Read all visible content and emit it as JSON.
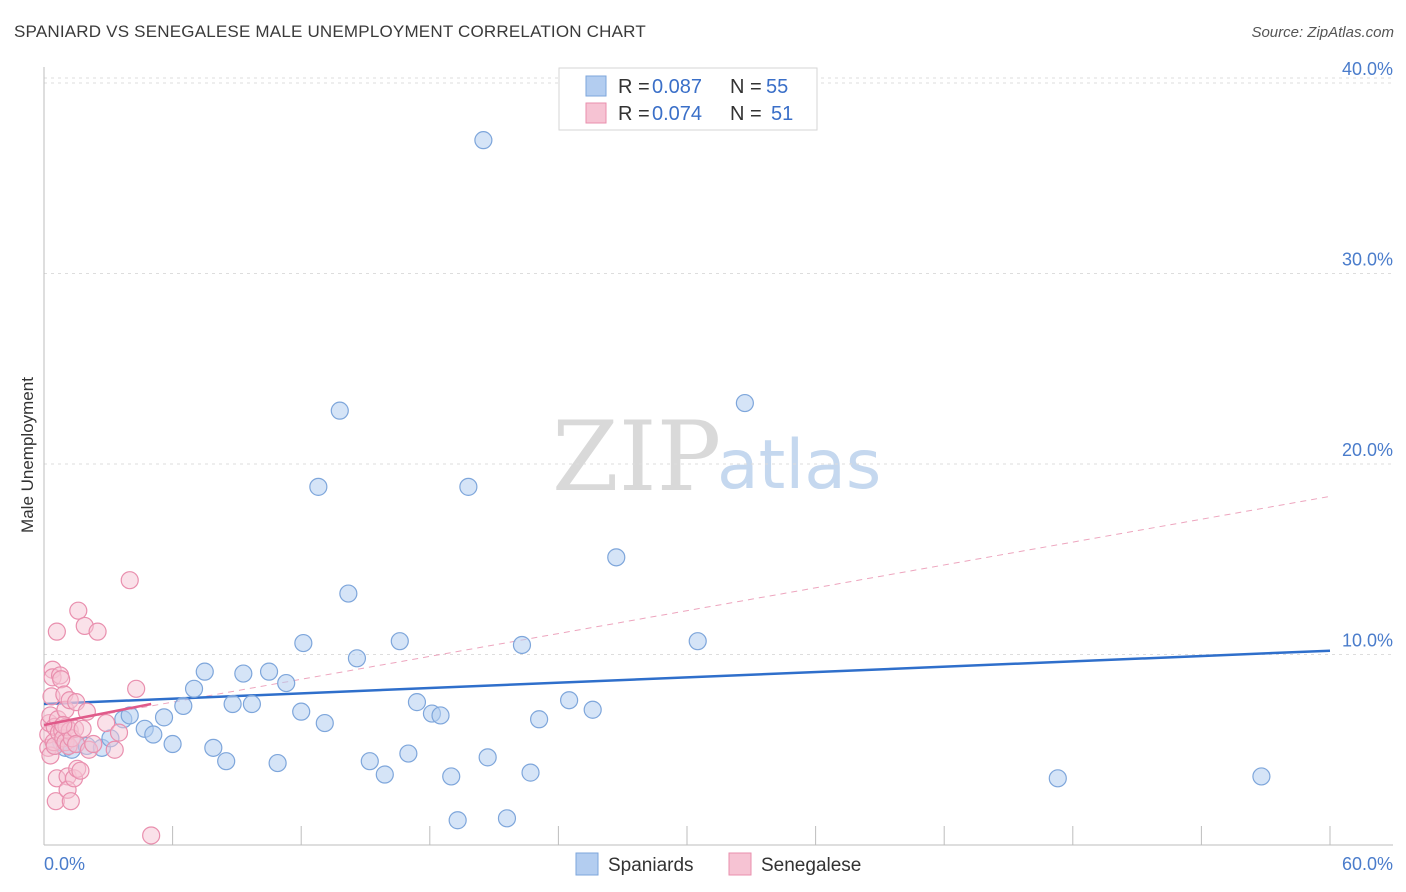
{
  "header": {
    "title": "SPANIARD VS SENEGALESE MALE UNEMPLOYMENT CORRELATION CHART",
    "source": "Source: ZipAtlas.com"
  },
  "chart_data": {
    "type": "scatter",
    "title": "SPANIARD VS SENEGALESE MALE UNEMPLOYMENT CORRELATION CHART",
    "ylabel": "Male Unemployment",
    "xlabel": "",
    "xlim": [
      0,
      60
    ],
    "ylim": [
      0,
      42
    ],
    "x_tick_labels": [
      "0.0%",
      "60.0%"
    ],
    "y_ticks": [
      10,
      20,
      30,
      40
    ],
    "y_tick_labels": [
      "10.0%",
      "20.0%",
      "30.0%",
      "40.0%"
    ],
    "grid": true,
    "colors": {
      "spaniards_fill": "#b3cdf0",
      "spaniards_stroke": "#7ea6db",
      "spaniards_line": "#2f6fcb",
      "senegalese_fill": "#f6c3d3",
      "senegalese_stroke": "#e98fae",
      "senegalese_line": "#e05a8a"
    },
    "legend": {
      "r_label": "R =",
      "n_label": "N =",
      "entries": [
        {
          "r": "0.087",
          "n": "55"
        },
        {
          "r": "0.074",
          "n": "51"
        }
      ]
    },
    "series": [
      {
        "name": "Spaniards",
        "r": 0.087,
        "n": 55,
        "trend": {
          "x": [
            0,
            60
          ],
          "y": [
            7.4,
            10.2
          ]
        },
        "points": [
          [
            0.5,
            5.2
          ],
          [
            0.8,
            5.4
          ],
          [
            1.0,
            5.1
          ],
          [
            1.3,
            5.0
          ],
          [
            1.5,
            5.3
          ],
          [
            2.0,
            5.2
          ],
          [
            2.7,
            5.1
          ],
          [
            3.1,
            5.6
          ],
          [
            3.7,
            6.6
          ],
          [
            4.0,
            6.8
          ],
          [
            4.7,
            6.1
          ],
          [
            5.1,
            5.8
          ],
          [
            5.6,
            6.7
          ],
          [
            6.0,
            5.3
          ],
          [
            6.5,
            7.3
          ],
          [
            7.0,
            8.2
          ],
          [
            7.5,
            9.1
          ],
          [
            7.9,
            5.1
          ],
          [
            8.5,
            4.4
          ],
          [
            8.8,
            7.4
          ],
          [
            9.3,
            9.0
          ],
          [
            9.7,
            7.4
          ],
          [
            10.5,
            9.1
          ],
          [
            10.9,
            4.3
          ],
          [
            11.3,
            8.5
          ],
          [
            12.0,
            7.0
          ],
          [
            12.1,
            10.6
          ],
          [
            12.8,
            18.8
          ],
          [
            13.1,
            6.4
          ],
          [
            13.8,
            22.8
          ],
          [
            14.2,
            13.2
          ],
          [
            14.6,
            9.8
          ],
          [
            15.2,
            4.4
          ],
          [
            15.9,
            3.7
          ],
          [
            16.6,
            10.7
          ],
          [
            17.0,
            4.8
          ],
          [
            17.4,
            7.5
          ],
          [
            18.1,
            6.9
          ],
          [
            18.5,
            6.8
          ],
          [
            19.0,
            3.6
          ],
          [
            19.3,
            1.3
          ],
          [
            19.8,
            18.8
          ],
          [
            20.5,
            37.0
          ],
          [
            20.7,
            4.6
          ],
          [
            21.6,
            1.4
          ],
          [
            22.3,
            10.5
          ],
          [
            22.7,
            3.8
          ],
          [
            23.1,
            6.6
          ],
          [
            24.5,
            7.6
          ],
          [
            25.6,
            7.1
          ],
          [
            26.7,
            15.1
          ],
          [
            30.5,
            10.7
          ],
          [
            32.7,
            23.2
          ],
          [
            47.3,
            3.5
          ],
          [
            56.8,
            3.6
          ]
        ]
      },
      {
        "name": "Senegalese",
        "r": 0.074,
        "n": 51,
        "trend": {
          "x": [
            0,
            5.0
          ],
          "y": [
            6.3,
            7.4
          ]
        },
        "trend_extended": {
          "x": [
            0,
            60
          ],
          "y": [
            6.3,
            18.3
          ]
        },
        "points": [
          [
            0.2,
            5.1
          ],
          [
            0.2,
            5.8
          ],
          [
            0.25,
            6.4
          ],
          [
            0.3,
            4.7
          ],
          [
            0.3,
            6.8
          ],
          [
            0.35,
            7.8
          ],
          [
            0.4,
            9.2
          ],
          [
            0.4,
            8.8
          ],
          [
            0.45,
            5.4
          ],
          [
            0.5,
            6.2
          ],
          [
            0.5,
            5.2
          ],
          [
            0.55,
            2.3
          ],
          [
            0.6,
            11.2
          ],
          [
            0.6,
            3.5
          ],
          [
            0.65,
            6.6
          ],
          [
            0.7,
            5.9
          ],
          [
            0.75,
            8.9
          ],
          [
            0.8,
            8.7
          ],
          [
            0.85,
            6.0
          ],
          [
            0.9,
            5.6
          ],
          [
            0.95,
            7.9
          ],
          [
            1.0,
            7.1
          ],
          [
            1.0,
            5.4
          ],
          [
            1.05,
            6.2
          ],
          [
            1.1,
            3.6
          ],
          [
            1.1,
            2.9
          ],
          [
            1.15,
            5.2
          ],
          [
            1.2,
            6.0
          ],
          [
            1.2,
            7.6
          ],
          [
            1.25,
            2.3
          ],
          [
            1.3,
            5.6
          ],
          [
            1.4,
            3.5
          ],
          [
            1.45,
            6.1
          ],
          [
            1.5,
            7.5
          ],
          [
            1.5,
            5.3
          ],
          [
            1.55,
            4.0
          ],
          [
            1.6,
            12.3
          ],
          [
            1.7,
            3.9
          ],
          [
            1.8,
            6.1
          ],
          [
            1.9,
            11.5
          ],
          [
            2.0,
            7.0
          ],
          [
            2.1,
            5.0
          ],
          [
            2.3,
            5.3
          ],
          [
            2.5,
            11.2
          ],
          [
            2.9,
            6.4
          ],
          [
            3.3,
            5.0
          ],
          [
            3.5,
            5.9
          ],
          [
            4.0,
            13.9
          ],
          [
            4.3,
            8.2
          ],
          [
            5.0,
            0.5
          ],
          [
            0.9,
            6.3
          ]
        ]
      }
    ],
    "watermark": {
      "zip": "ZIP",
      "atlas": "atlas"
    }
  }
}
